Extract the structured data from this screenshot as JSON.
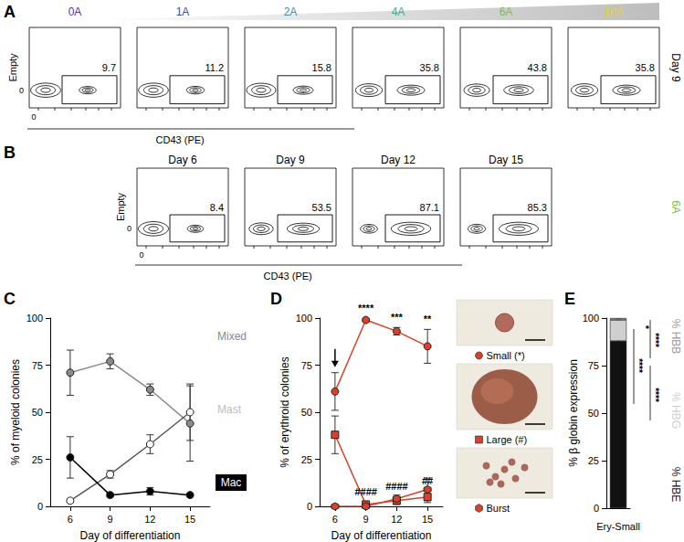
{
  "chart_data": [
    {
      "panel": "A",
      "type": "flow",
      "xlabel": "CD43 (PE)",
      "ylabel": "Empty",
      "xticks": [
        0
      ],
      "yticks": [
        0
      ],
      "row_label": "Day 9",
      "color": "#000000",
      "series": [
        {
          "name": "0A",
          "color": "#5b2d8e",
          "value": 9.7
        },
        {
          "name": "1A",
          "color": "#3d4f9f",
          "value": 11.2
        },
        {
          "name": "2A",
          "color": "#3b8db0",
          "value": 15.8
        },
        {
          "name": "4A",
          "color": "#36ad8c",
          "value": 35.8
        },
        {
          "name": "6A",
          "color": "#7dbf4b",
          "value": 43.8
        },
        {
          "name": "10A",
          "color": "#e6cf2a",
          "value": 35.8
        }
      ]
    },
    {
      "panel": "B",
      "type": "flow",
      "xlabel": "CD43 (PE)",
      "ylabel": "Empty",
      "xticks": [
        0
      ],
      "yticks": [
        0
      ],
      "row_label": "6A",
      "color": "#7dbf4b",
      "series": [
        {
          "name": "Day 6",
          "color": "#000000",
          "value": 8.4
        },
        {
          "name": "Day 9",
          "color": "#000000",
          "value": 53.5
        },
        {
          "name": "Day 12",
          "color": "#000000",
          "value": 87.1
        },
        {
          "name": "Day 15",
          "color": "#000000",
          "value": 85.3
        }
      ]
    },
    {
      "panel": "C",
      "type": "line",
      "xlabel": "Day of differentiation",
      "ylabel": "% of myeloid colonies",
      "categories": [
        "6",
        "9",
        "12",
        "15"
      ],
      "ylim": [
        0,
        100
      ],
      "yticks": [
        0,
        25,
        50,
        75,
        100
      ],
      "grid": false,
      "marker": "circle",
      "series": [
        {
          "name": "Mixed",
          "color": "#8a8a8a",
          "values": [
            71,
            77,
            62,
            44
          ],
          "errors": [
            12,
            4,
            3,
            20
          ]
        },
        {
          "name": "Mast",
          "color": "#ffffff",
          "values": [
            3,
            17,
            33,
            50
          ],
          "errors": [
            1,
            2,
            5,
            15
          ]
        },
        {
          "name": "Mac",
          "color": "#000000",
          "values": [
            26,
            6,
            8,
            6
          ],
          "errors": [
            11,
            1,
            2,
            1
          ]
        }
      ]
    },
    {
      "panel": "D",
      "type": "line",
      "xlabel": "Day of differentiation",
      "ylabel": "% of erythroid colonies",
      "categories": [
        "6",
        "9",
        "12",
        "15"
      ],
      "ylim": [
        0,
        100
      ],
      "yticks": [
        0,
        25,
        50,
        75,
        100
      ],
      "grid": false,
      "series": [
        {
          "name": "Small (*)",
          "color": "#d9412b",
          "marker": "circle",
          "values": [
            61,
            99,
            93,
            85
          ],
          "errors": [
            10,
            1,
            2,
            9
          ],
          "annotations": [
            null,
            "****",
            "***",
            "**"
          ]
        },
        {
          "name": "Large (#)",
          "color": "#d9412b",
          "marker": "square",
          "values": [
            38,
            1,
            3,
            5
          ],
          "errors": [
            10,
            1,
            2,
            3
          ],
          "annotations": [
            null,
            "####",
            "####",
            "##"
          ]
        },
        {
          "name": "Burst",
          "color": "#d9412b",
          "marker": "hexagon",
          "values": [
            0,
            0,
            4,
            9
          ],
          "errors": [
            0,
            0,
            2,
            6
          ]
        }
      ]
    },
    {
      "panel": "E",
      "type": "bar",
      "stacked": true,
      "ylabel": "% β globin expression",
      "categories": [
        "Ery-Small"
      ],
      "ylim": [
        0,
        100
      ],
      "yticks": [
        0,
        25,
        50,
        75,
        100
      ],
      "grid": false,
      "series": [
        {
          "name": "% HBE",
          "color": "#111111",
          "values": [
            88
          ],
          "errors": [
            1
          ]
        },
        {
          "name": "% HBG",
          "color": "#cfcfcf",
          "values": [
            11
          ],
          "errors": [
            1
          ]
        },
        {
          "name": "% HBB",
          "color": "#9a9a9a",
          "values": [
            1
          ],
          "errors": [
            0.5
          ]
        }
      ],
      "annotations": [
        "****",
        "*",
        "****",
        "****"
      ]
    }
  ]
}
